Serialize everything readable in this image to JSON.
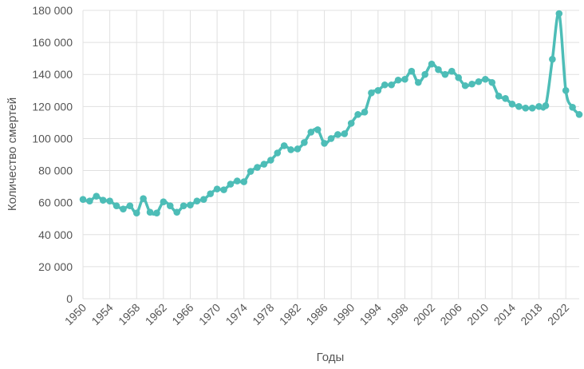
{
  "chart_data": {
    "type": "line",
    "xlabel": "Годы",
    "ylabel": "Количество смертей",
    "xlim": [
      1950,
      2024
    ],
    "ylim": [
      0,
      180000
    ],
    "grid": true,
    "color": "#4dbdb7",
    "y_ticks": [
      {
        "value": 0,
        "label": "0"
      },
      {
        "value": 20000,
        "label": "20 000"
      },
      {
        "value": 40000,
        "label": "40 000"
      },
      {
        "value": 60000,
        "label": "60 000"
      },
      {
        "value": 80000,
        "label": "80 000"
      },
      {
        "value": 100000,
        "label": "100 000"
      },
      {
        "value": 120000,
        "label": "120 000"
      },
      {
        "value": 140000,
        "label": "140 000"
      },
      {
        "value": 160000,
        "label": "160 000"
      },
      {
        "value": 180000,
        "label": "180 000"
      }
    ],
    "x_ticks": [
      {
        "value": 1950,
        "label": "1950"
      },
      {
        "value": 1954,
        "label": "1954"
      },
      {
        "value": 1958,
        "label": "1958"
      },
      {
        "value": 1962,
        "label": "1962"
      },
      {
        "value": 1966,
        "label": "1966"
      },
      {
        "value": 1970,
        "label": "1970"
      },
      {
        "value": 1974,
        "label": "1974"
      },
      {
        "value": 1978,
        "label": "1978"
      },
      {
        "value": 1982,
        "label": "1982"
      },
      {
        "value": 1986,
        "label": "1986"
      },
      {
        "value": 1990,
        "label": "1990"
      },
      {
        "value": 1994,
        "label": "1994"
      },
      {
        "value": 1998,
        "label": "1998"
      },
      {
        "value": 2002,
        "label": "2002"
      },
      {
        "value": 2006,
        "label": "2006"
      },
      {
        "value": 2010,
        "label": "2010"
      },
      {
        "value": 2014,
        "label": "2014"
      },
      {
        "value": 2018,
        "label": "2018"
      },
      {
        "value": 2022,
        "label": "2022"
      }
    ],
    "series": [
      {
        "x": [
          1950,
          1951,
          1952,
          1953,
          1954,
          1955,
          1956,
          1957,
          1958,
          1959,
          1960,
          1961,
          1962,
          1963,
          1964,
          1965,
          1966,
          1967,
          1968,
          1969,
          1970,
          1971,
          1972,
          1973,
          1974,
          1975,
          1976,
          1977,
          1978,
          1979,
          1980,
          1981,
          1982,
          1983,
          1984,
          1985,
          1986,
          1987,
          1988,
          1989,
          1990,
          1991,
          1992,
          1993,
          1994,
          1995,
          1996,
          1997,
          1998,
          1999,
          2000,
          2001,
          2002,
          2003,
          2004,
          2005,
          2006,
          2007,
          2008,
          2009,
          2010,
          2011,
          2012,
          2013,
          2014,
          2015,
          2016,
          2017,
          2018,
          2019,
          2020,
          2021,
          2022,
          2023,
          2024
        ],
        "values": [
          62000,
          61000,
          64000,
          61500,
          61000,
          58000,
          56000,
          58000,
          53500,
          62500,
          54000,
          53500,
          60500,
          58000,
          54000,
          58000,
          58500,
          61000,
          62000,
          65500,
          68500,
          68000,
          71500,
          73500,
          73000,
          79500,
          82000,
          84000,
          86500,
          91000,
          95500,
          93000,
          93500,
          97500,
          104000,
          105500,
          97000,
          100000,
          102500,
          103000,
          109500,
          115000,
          116500,
          128500,
          130000,
          133500,
          133500,
          136500,
          137000,
          142000,
          135000,
          140000,
          146500,
          143000,
          140000,
          142000,
          138000,
          133000,
          134000,
          135500,
          137000,
          135000,
          126500,
          125000,
          121500,
          120000,
          119000,
          119000,
          120000,
          120500,
          149500,
          178000,
          130000,
          119500,
          115000
        ]
      }
    ]
  }
}
